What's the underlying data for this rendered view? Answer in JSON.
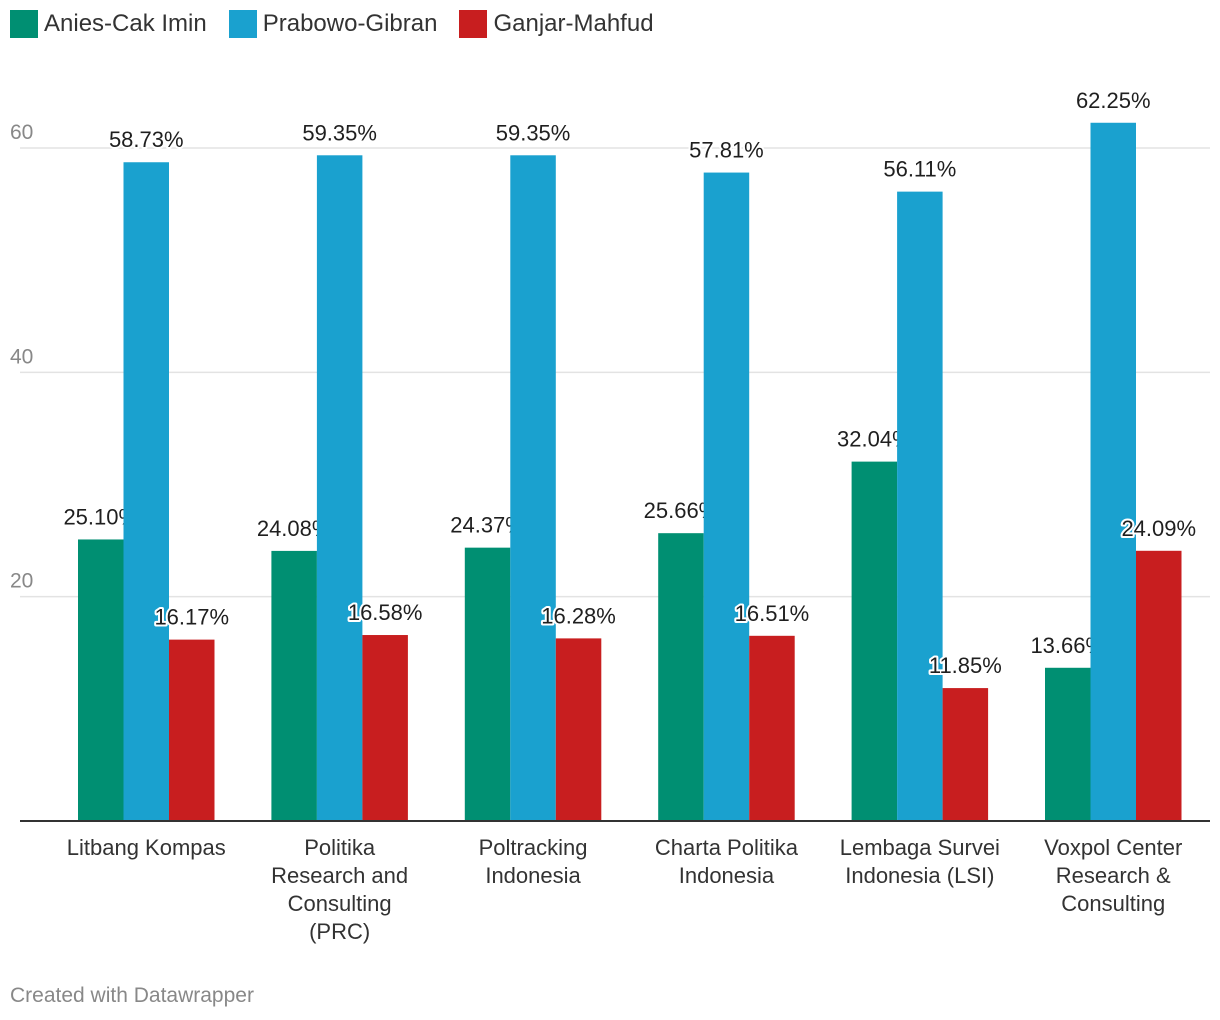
{
  "chart_data": {
    "type": "bar",
    "categories": [
      "Litbang Kompas",
      "Politika Research and Consulting (PRC)",
      "Poltracking Indonesia",
      "Charta Politika Indonesia",
      "Lembaga Survei Indonesia (LSI)",
      "Voxpol Center Research & Consulting"
    ],
    "category_lines": [
      [
        "Litbang Kompas"
      ],
      [
        "Politika",
        "Research and",
        "Consulting",
        "(PRC)"
      ],
      [
        "Poltracking",
        "Indonesia"
      ],
      [
        "Charta Politika",
        "Indonesia"
      ],
      [
        "Lembaga Survei",
        "Indonesia (LSI)"
      ],
      [
        "Voxpol Center",
        "Research &",
        "Consulting"
      ]
    ],
    "series": [
      {
        "name": "Anies-Cak Imin",
        "color": "#008f72",
        "values": [
          25.1,
          24.08,
          24.37,
          25.66,
          32.04,
          13.66
        ],
        "labels": [
          "25.10%",
          "24.08%",
          "24.37%",
          "25.66%",
          "32.04%",
          "13.66%"
        ]
      },
      {
        "name": "Prabowo-Gibran",
        "color": "#1aa1cf",
        "values": [
          58.73,
          59.35,
          59.35,
          57.81,
          56.11,
          62.25
        ],
        "labels": [
          "58.73%",
          "59.35%",
          "59.35%",
          "57.81%",
          "56.11%",
          "62.25%"
        ]
      },
      {
        "name": "Ganjar-Mahfud",
        "color": "#c81e1f",
        "values": [
          16.17,
          16.58,
          16.28,
          16.51,
          11.85,
          24.09
        ],
        "labels": [
          "16.17%",
          "16.58%",
          "16.28%",
          "16.51%",
          "11.85%",
          "24.09%"
        ]
      }
    ],
    "yticks": [
      20,
      40,
      60
    ],
    "ylim": [
      0,
      60
    ],
    "grid": true,
    "legend_position": "top-left",
    "title": "",
    "xlabel": "",
    "ylabel": ""
  },
  "legend": [
    {
      "label": "Anies-Cak Imin",
      "color": "#008f72"
    },
    {
      "label": "Prabowo-Gibran",
      "color": "#1aa1cf"
    },
    {
      "label": "Ganjar-Mahfud",
      "color": "#c81e1f"
    }
  ],
  "footer": {
    "credit": "Created with Datawrapper"
  }
}
